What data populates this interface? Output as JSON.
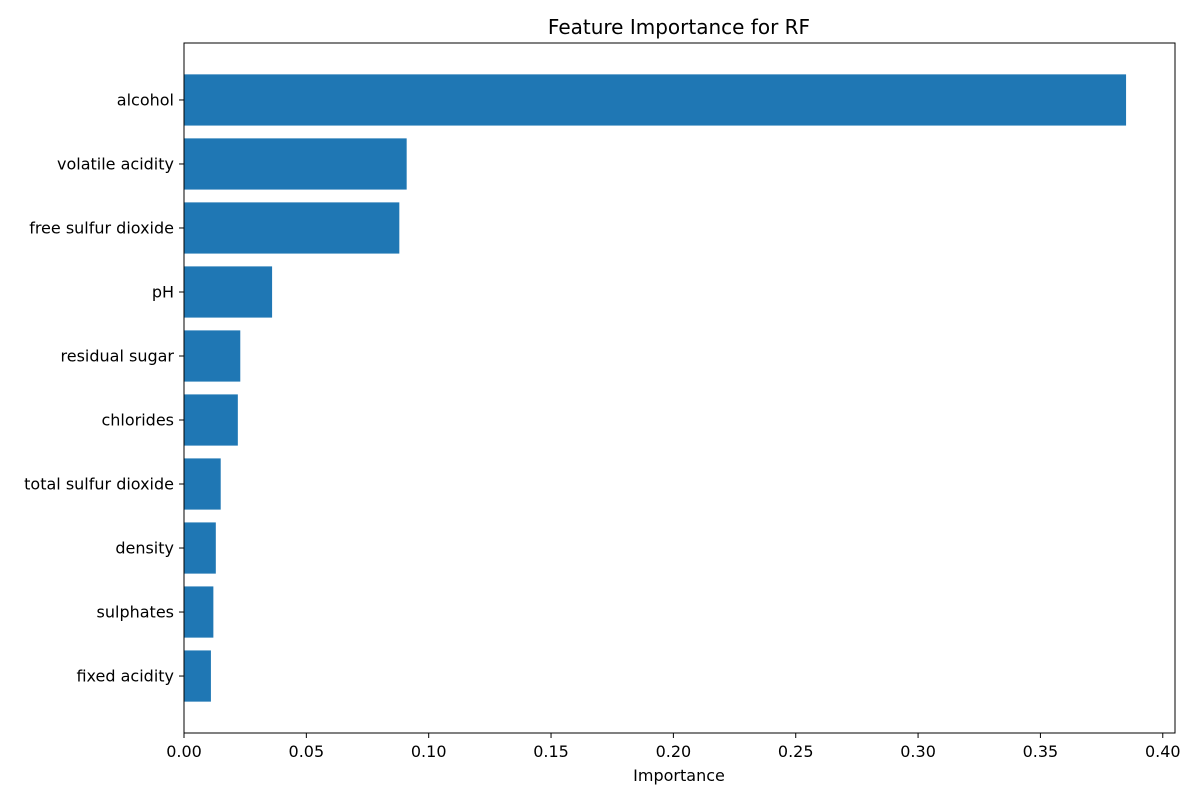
{
  "chart_data": {
    "type": "bar",
    "orientation": "horizontal",
    "title": "Feature Importance for RF",
    "xlabel": "Importance",
    "ylabel": "",
    "categories": [
      "alcohol",
      "volatile acidity",
      "free sulfur dioxide",
      "pH",
      "residual sugar",
      "chlorides",
      "total sulfur dioxide",
      "density",
      "sulphates",
      "fixed acidity"
    ],
    "values": [
      0.385,
      0.091,
      0.088,
      0.036,
      0.023,
      0.022,
      0.015,
      0.013,
      0.012,
      0.011
    ],
    "xlim": [
      0.0,
      0.405
    ],
    "xticks": [
      0.0,
      0.05,
      0.1,
      0.15,
      0.2,
      0.25,
      0.3,
      0.35,
      0.4
    ],
    "xtick_labels": [
      "0.00",
      "0.05",
      "0.10",
      "0.15",
      "0.20",
      "0.25",
      "0.30",
      "0.35",
      "0.40"
    ],
    "grid": false,
    "legend": false,
    "bar_color": "#1f77b4"
  }
}
